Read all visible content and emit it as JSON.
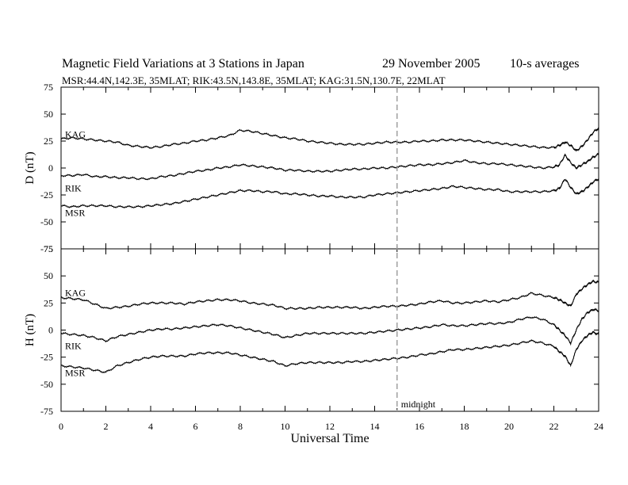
{
  "title": {
    "main": "Magnetic Field Variations at 3 Stations in Japan",
    "date": "29 November 2005",
    "averaging": "10-s averages",
    "stations": "MSR:44.4N,142.3E, 35MLAT;  RIK:43.5N,143.8E, 35MLAT;  KAG:31.5N,130.7E, 22MLAT"
  },
  "chart_data": [
    {
      "type": "line",
      "panel": "D",
      "ylabel": "D (nT)",
      "ylim": [
        -75,
        75
      ],
      "yticks": [
        -75,
        -50,
        -25,
        0,
        25,
        50,
        75
      ],
      "xlim": [
        0,
        24
      ],
      "grid": false,
      "x": [
        0,
        0.5,
        1,
        1.5,
        2,
        2.5,
        3,
        3.5,
        4,
        4.5,
        5,
        5.5,
        6,
        6.5,
        7,
        7.5,
        8,
        8.5,
        9,
        9.5,
        10,
        10.5,
        11,
        11.5,
        12,
        12.5,
        13,
        13.5,
        14,
        14.5,
        15,
        15.5,
        16,
        16.5,
        17,
        17.5,
        18,
        18.5,
        19,
        19.5,
        20,
        20.5,
        21,
        21.5,
        22,
        22.25,
        22.5,
        22.75,
        23,
        23.25,
        23.5,
        23.75,
        24
      ],
      "series": [
        {
          "name": "KAG",
          "values": [
            27,
            28,
            27,
            26,
            25,
            24,
            21,
            20,
            19,
            20,
            22,
            23,
            25,
            26,
            28,
            30,
            35,
            34,
            32,
            30,
            28,
            27,
            25,
            24,
            23,
            22,
            22,
            22,
            23,
            24,
            24,
            24,
            25,
            25,
            26,
            26,
            26,
            25,
            24,
            23,
            22,
            21,
            20,
            19,
            19,
            21,
            24,
            21,
            16,
            20,
            26,
            33,
            37
          ]
        },
        {
          "name": "RIK",
          "values": [
            -7,
            -7,
            -6,
            -8,
            -8,
            -9,
            -9,
            -10,
            -10,
            -8,
            -7,
            -5,
            -3,
            -2,
            0,
            1,
            3,
            2,
            1,
            0,
            -2,
            -2,
            -3,
            -3,
            -3,
            -2,
            -1,
            -1,
            0,
            0,
            1,
            2,
            3,
            3,
            4,
            5,
            7,
            5,
            4,
            4,
            3,
            2,
            1,
            0,
            1,
            3,
            12,
            5,
            0,
            3,
            6,
            10,
            13
          ]
        },
        {
          "name": "MSR",
          "values": [
            -35,
            -36,
            -35,
            -35,
            -35,
            -36,
            -36,
            -36,
            -35,
            -34,
            -33,
            -31,
            -29,
            -27,
            -25,
            -23,
            -21,
            -21,
            -22,
            -22,
            -24,
            -24,
            -25,
            -26,
            -26,
            -27,
            -27,
            -27,
            -25,
            -24,
            -23,
            -22,
            -21,
            -20,
            -19,
            -17,
            -18,
            -19,
            -20,
            -20,
            -22,
            -22,
            -22,
            -22,
            -21,
            -19,
            -10,
            -18,
            -24,
            -22,
            -18,
            -13,
            -10
          ]
        }
      ]
    },
    {
      "type": "line",
      "panel": "H",
      "ylabel": "H (nT)",
      "ylim": [
        -75,
        75
      ],
      "yticks": [
        -75,
        -50,
        -25,
        0,
        25,
        50,
        75
      ],
      "xlim": [
        0,
        24
      ],
      "xticks": [
        0,
        2,
        4,
        6,
        8,
        10,
        12,
        14,
        16,
        18,
        20,
        22,
        24
      ],
      "xlabel": "Universal Time",
      "grid": false,
      "x": [
        0,
        0.5,
        1,
        1.5,
        2,
        2.5,
        3,
        3.5,
        4,
        4.5,
        5,
        5.5,
        6,
        6.5,
        7,
        7.5,
        8,
        8.5,
        9,
        9.5,
        10,
        10.5,
        11,
        11.5,
        12,
        12.5,
        13,
        13.5,
        14,
        14.5,
        15,
        15.5,
        16,
        16.5,
        17,
        17.5,
        18,
        18.5,
        19,
        19.5,
        20,
        20.5,
        21,
        21.5,
        22,
        22.25,
        22.5,
        22.75,
        23,
        23.25,
        23.5,
        23.75,
        24
      ],
      "series": [
        {
          "name": "KAG",
          "values": [
            30,
            29,
            28,
            24,
            20,
            21,
            22,
            24,
            25,
            25,
            25,
            24,
            26,
            27,
            28,
            28,
            27,
            25,
            24,
            23,
            20,
            20,
            20,
            21,
            21,
            21,
            21,
            20,
            21,
            22,
            22,
            23,
            24,
            26,
            27,
            25,
            25,
            26,
            27,
            26,
            28,
            30,
            34,
            32,
            30,
            28,
            25,
            22,
            33,
            38,
            42,
            45,
            44
          ]
        },
        {
          "name": "RIK",
          "values": [
            -3,
            -4,
            -5,
            -7,
            -10,
            -6,
            -4,
            -2,
            0,
            1,
            1,
            2,
            3,
            4,
            5,
            4,
            2,
            0,
            -2,
            -4,
            -7,
            -5,
            -3,
            -3,
            -3,
            -3,
            -3,
            -3,
            -2,
            -1,
            0,
            1,
            2,
            3,
            5,
            4,
            4,
            5,
            6,
            6,
            7,
            10,
            12,
            10,
            5,
            0,
            -5,
            -12,
            0,
            10,
            16,
            19,
            18
          ]
        },
        {
          "name": "MSR",
          "values": [
            -33,
            -34,
            -35,
            -37,
            -39,
            -33,
            -30,
            -27,
            -25,
            -24,
            -24,
            -24,
            -22,
            -21,
            -21,
            -21,
            -23,
            -25,
            -27,
            -29,
            -33,
            -31,
            -30,
            -30,
            -30,
            -30,
            -29,
            -29,
            -28,
            -27,
            -26,
            -25,
            -23,
            -22,
            -20,
            -18,
            -18,
            -17,
            -16,
            -15,
            -14,
            -12,
            -10,
            -12,
            -15,
            -20,
            -24,
            -33,
            -18,
            -10,
            -5,
            -2,
            -4
          ]
        }
      ]
    }
  ],
  "annotation": {
    "x": 15,
    "label": "midnight"
  }
}
